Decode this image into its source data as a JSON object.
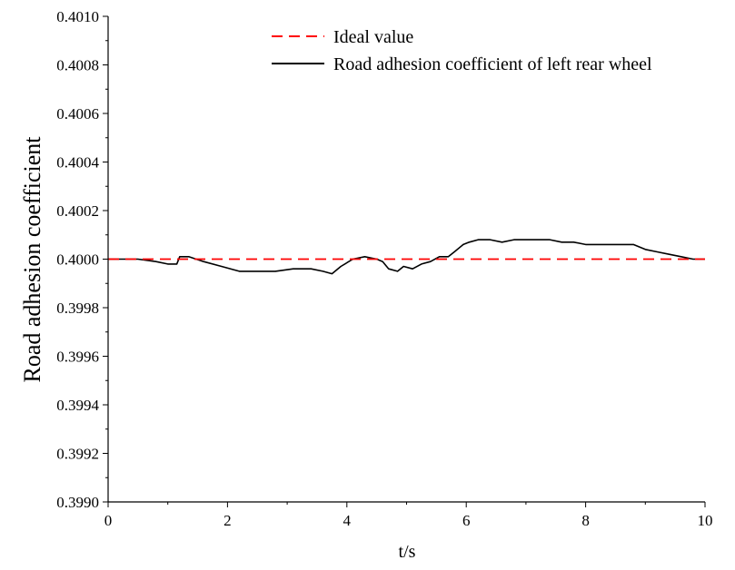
{
  "chart_data": {
    "type": "line",
    "xlabel": "t/s",
    "ylabel": "Road adhesion coefficient",
    "xlim": [
      0,
      10
    ],
    "ylim": [
      0.399,
      0.401
    ],
    "x_ticks": [
      0,
      2,
      4,
      6,
      8,
      10
    ],
    "x_tick_labels": [
      "0",
      "2",
      "4",
      "6",
      "8",
      "10"
    ],
    "y_ticks": [
      0.399,
      0.3992,
      0.3994,
      0.3996,
      0.3998,
      0.4,
      0.4002,
      0.4004,
      0.4006,
      0.4008,
      0.401
    ],
    "y_tick_labels": [
      "0.3990",
      "0.3992",
      "0.3994",
      "0.3996",
      "0.3998",
      "0.4000",
      "0.4002",
      "0.4004",
      "0.4006",
      "0.4008",
      "0.4010"
    ],
    "grid": false,
    "legend_position": "top-right",
    "series": [
      {
        "name": "Ideal value",
        "color": "#ff0000",
        "style": "dashed",
        "x": [
          0,
          10
        ],
        "y": [
          0.4,
          0.4
        ]
      },
      {
        "name": "Road adhesion coefficient of left rear wheel",
        "color": "#000000",
        "style": "solid",
        "x": [
          0,
          0.5,
          0.8,
          1.0,
          1.15,
          1.2,
          1.25,
          1.35,
          1.6,
          1.9,
          2.2,
          2.5,
          2.8,
          3.1,
          3.4,
          3.6,
          3.75,
          3.9,
          4.1,
          4.3,
          4.5,
          4.6,
          4.7,
          4.85,
          4.95,
          5.1,
          5.25,
          5.4,
          5.55,
          5.7,
          5.8,
          5.95,
          6.05,
          6.2,
          6.4,
          6.6,
          6.8,
          7.0,
          7.2,
          7.4,
          7.6,
          7.8,
          8.0,
          8.2,
          8.4,
          8.6,
          8.8,
          9.0,
          9.2,
          9.4,
          9.6,
          9.8,
          10.0
        ],
        "y": [
          0.4,
          0.4,
          0.39999,
          0.39998,
          0.39998,
          0.40001,
          0.40001,
          0.40001,
          0.39999,
          0.39997,
          0.39995,
          0.39995,
          0.39995,
          0.39996,
          0.39996,
          0.39995,
          0.39994,
          0.39997,
          0.4,
          0.40001,
          0.4,
          0.39999,
          0.39996,
          0.39995,
          0.39997,
          0.39996,
          0.39998,
          0.39999,
          0.40001,
          0.40001,
          0.40003,
          0.40006,
          0.40007,
          0.40008,
          0.40008,
          0.40007,
          0.40008,
          0.40008,
          0.40008,
          0.40008,
          0.40007,
          0.40007,
          0.40006,
          0.40006,
          0.40006,
          0.40006,
          0.40006,
          0.40004,
          0.40003,
          0.40002,
          0.40001,
          0.4,
          0.4
        ]
      }
    ]
  }
}
